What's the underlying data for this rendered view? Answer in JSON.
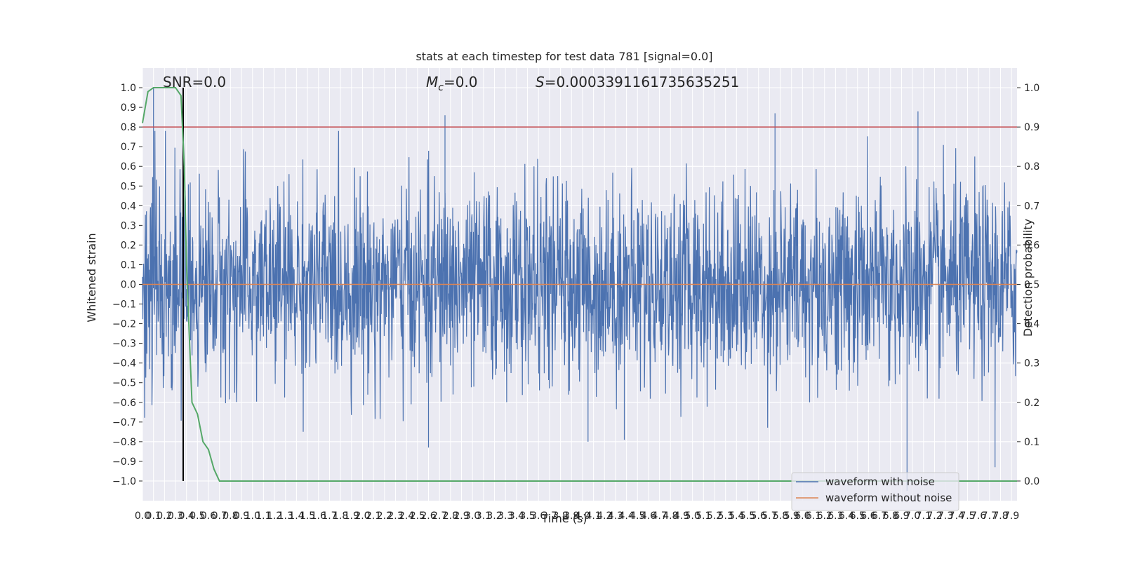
{
  "chart_data": {
    "type": "line",
    "title": "stats at each timestep for test data 781 [signal=0.0]",
    "xlabel": "Time (s)",
    "ylabel": "Whitened strain",
    "y2label": "Detection probability",
    "xlim": [
      0.0,
      7.95
    ],
    "ylim": [
      -1.1,
      1.1
    ],
    "y2lim": [
      -0.05,
      1.05
    ],
    "x_ticks": [
      "0.0",
      "0.1",
      "0.2",
      "0.3",
      "0.4",
      "0.5",
      "0.6",
      "0.7",
      "0.8",
      "0.9",
      "1.0",
      "1.1",
      "1.2",
      "1.3",
      "1.4",
      "1.5",
      "1.6",
      "1.7",
      "1.8",
      "1.9",
      "2.0",
      "2.1",
      "2.2",
      "2.3",
      "2.4",
      "2.5",
      "2.6",
      "2.7",
      "2.8",
      "2.9",
      "3.0",
      "3.1",
      "3.2",
      "3.3",
      "3.4",
      "3.5",
      "3.6",
      "3.7",
      "3.8",
      "3.9",
      "4.0",
      "4.1",
      "4.2",
      "4.3",
      "4.4",
      "4.5",
      "4.6",
      "4.7",
      "4.8",
      "4.9",
      "5.0",
      "5.1",
      "5.2",
      "5.3",
      "5.4",
      "5.5",
      "5.6",
      "5.7",
      "5.8",
      "5.9",
      "6.0",
      "6.1",
      "6.2",
      "6.3",
      "6.4",
      "6.5",
      "6.6",
      "6.7",
      "6.8",
      "6.9",
      "7.0",
      "7.1",
      "7.2",
      "7.3",
      "7.4",
      "7.5",
      "7.6",
      "7.7",
      "7.8",
      "7.9"
    ],
    "y_ticks": [
      "1.0",
      "0.9",
      "0.8",
      "0.7",
      "0.6",
      "0.5",
      "0.4",
      "0.3",
      "0.2",
      "0.1",
      "0.0",
      "−0.1",
      "−0.2",
      "−0.3",
      "−0.4",
      "−0.5",
      "−0.6",
      "−0.7",
      "−0.8",
      "−0.9",
      "−1.0"
    ],
    "y2_ticks": [
      "1.0",
      "0.9",
      "0.8",
      "0.7",
      "0.6",
      "0.5",
      "0.4",
      "0.3",
      "0.2",
      "0.1",
      "0.0"
    ],
    "annotations": {
      "snr": "SNR=0.0",
      "mc_symbol": "M",
      "mc_sub": "c",
      "mc_value": "=0.0",
      "s_symbol": "S",
      "s_value": "=0.0003391161735635251"
    },
    "series": [
      {
        "name": "waveform with noise",
        "color": "#4c72b0",
        "amplitude_typical": 0.4,
        "peaks_max": [
          0.86,
          0.87,
          0.88
        ],
        "peaks_min": [
          -0.83,
          -0.93,
          -1.05
        ]
      },
      {
        "name": "waveform without noise",
        "color": "#dd8452",
        "values": 0.0
      }
    ],
    "detection_probability": {
      "color": "#55a868",
      "x": [
        0.0,
        0.05,
        0.1,
        0.2,
        0.3,
        0.35,
        0.38,
        0.4,
        0.45,
        0.5,
        0.55,
        0.6,
        0.65,
        0.7,
        0.75,
        7.95
      ],
      "y": [
        0.91,
        0.99,
        1.0,
        1.0,
        1.0,
        0.98,
        0.8,
        0.55,
        0.2,
        0.17,
        0.1,
        0.08,
        0.03,
        0.0,
        0.0,
        0.0
      ]
    },
    "threshold_line": {
      "color": "#c44e52",
      "y2": 0.9
    },
    "vertical_marker": {
      "color": "#000000",
      "x": 0.37,
      "y_range": [
        -1.0,
        1.0
      ]
    },
    "grid": true,
    "legend_position": "lower right",
    "background": "#eaeaf2"
  }
}
